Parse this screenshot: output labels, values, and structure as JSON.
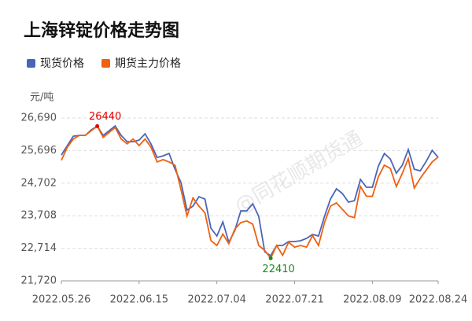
{
  "chart_data": {
    "type": "line",
    "title": "上海锌锭价格走势图",
    "y_unit": "元/吨",
    "watermark": "@同花顺期货通",
    "categories": [
      "2022.05.26",
      null,
      null,
      null,
      null,
      null,
      null,
      null,
      null,
      null,
      null,
      null,
      null,
      "2022.06.15",
      null,
      null,
      null,
      null,
      null,
      null,
      null,
      null,
      null,
      null,
      null,
      null,
      "2022.07.04",
      null,
      null,
      null,
      null,
      null,
      null,
      null,
      null,
      null,
      null,
      null,
      null,
      "2022.07.21",
      null,
      null,
      null,
      null,
      null,
      null,
      null,
      null,
      null,
      null,
      null,
      null,
      "2022.08.09",
      null,
      null,
      null,
      null,
      null,
      null,
      null,
      null,
      null,
      null,
      "2022.08.24"
    ],
    "series": [
      {
        "name": "现货价格",
        "color": "#4a65b8",
        "values": [
          25560,
          25848,
          26136,
          26160,
          26160,
          26328,
          26440,
          26160,
          26304,
          26448,
          26160,
          25968,
          25968,
          26016,
          26208,
          25896,
          25488,
          25536,
          25608,
          25128,
          24720,
          23880,
          24000,
          24288,
          24216,
          23328,
          23088,
          23520,
          22896,
          23256,
          23856,
          23856,
          24072,
          23688,
          22608,
          22488,
          22800,
          22800,
          22920,
          22920,
          22944,
          23016,
          23136,
          23088,
          23688,
          24216,
          24528,
          24384,
          24120,
          24168,
          24816,
          24576,
          24576,
          25224,
          25608,
          25440,
          25008,
          25248,
          25728,
          25128,
          25080,
          25368,
          25704,
          25488
        ]
      },
      {
        "name": "期货主力价格",
        "color": "#f0600e",
        "values": [
          25400,
          25800,
          26050,
          26160,
          26160,
          26300,
          26440,
          26100,
          26250,
          26400,
          26050,
          25900,
          26050,
          25850,
          26050,
          25800,
          25350,
          25420,
          25350,
          25250,
          24500,
          23700,
          24250,
          24000,
          23800,
          22950,
          22800,
          23150,
          22850,
          23300,
          23500,
          23550,
          23450,
          22800,
          22650,
          22410,
          22800,
          22500,
          22900,
          22750,
          22800,
          22750,
          23100,
          22800,
          23500,
          24000,
          24100,
          23900,
          23700,
          23650,
          24600,
          24300,
          24300,
          24900,
          25250,
          25150,
          24600,
          25000,
          25450,
          24550,
          24850,
          25100,
          25350,
          25500
        ]
      }
    ],
    "labeled_points": [
      {
        "series": 1,
        "index": 6,
        "color": "#e00000"
      },
      {
        "series": 1,
        "index": 35,
        "color": "#1a8a1a"
      }
    ],
    "ylim": [
      21720,
      26690
    ],
    "yticks": [
      {
        "value": 21720,
        "label": "21,720"
      },
      {
        "value": 22714,
        "label": "22,714"
      },
      {
        "value": 23708,
        "label": "23,708"
      },
      {
        "value": 24702,
        "label": "24,702"
      },
      {
        "value": 25696,
        "label": "25,696"
      },
      {
        "value": 26690,
        "label": "26,690"
      }
    ],
    "grid": true
  }
}
